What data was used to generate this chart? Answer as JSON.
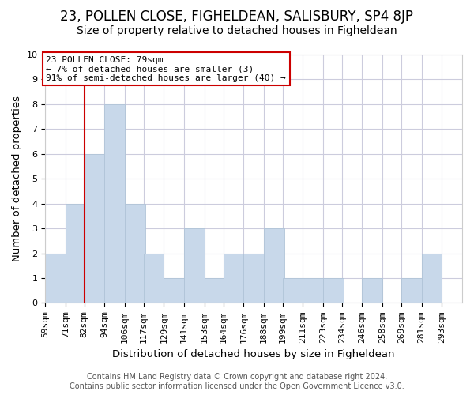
{
  "title": "23, POLLEN CLOSE, FIGHELDEAN, SALISBURY, SP4 8JP",
  "subtitle": "Size of property relative to detached houses in Figheldean",
  "xlabel": "Distribution of detached houses by size in Figheldean",
  "ylabel": "Number of detached properties",
  "bins": [
    59,
    71,
    82,
    94,
    106,
    117,
    129,
    141,
    153,
    164,
    176,
    188,
    199,
    211,
    223,
    234,
    246,
    258,
    269,
    281,
    293
  ],
  "bin_labels": [
    "59sqm",
    "71sqm",
    "82sqm",
    "94sqm",
    "106sqm",
    "117sqm",
    "129sqm",
    "141sqm",
    "153sqm",
    "164sqm",
    "176sqm",
    "188sqm",
    "199sqm",
    "211sqm",
    "223sqm",
    "234sqm",
    "246sqm",
    "258sqm",
    "269sqm",
    "281sqm",
    "293sqm"
  ],
  "counts": [
    2,
    4,
    6,
    8,
    4,
    2,
    1,
    3,
    1,
    2,
    2,
    3,
    1,
    1,
    1,
    0,
    1,
    0,
    1,
    2,
    0
  ],
  "bar_color": "#c8d8ea",
  "bar_edge_color": "#b0c4d8",
  "vline_x": 82,
  "vline_color": "#cc0000",
  "annotation_title": "23 POLLEN CLOSE: 79sqm",
  "annotation_line1": "← 7% of detached houses are smaller (3)",
  "annotation_line2": "91% of semi-detached houses are larger (40) →",
  "annotation_box_color": "#ffffff",
  "annotation_box_edge": "#cc0000",
  "ylim": [
    0,
    10
  ],
  "yticks": [
    0,
    1,
    2,
    3,
    4,
    5,
    6,
    7,
    8,
    9,
    10
  ],
  "grid_color": "#ccccdd",
  "footer1": "Contains HM Land Registry data © Crown copyright and database right 2024.",
  "footer2": "Contains public sector information licensed under the Open Government Licence v3.0.",
  "title_fontsize": 12,
  "subtitle_fontsize": 10,
  "axis_label_fontsize": 9.5,
  "tick_fontsize": 8,
  "footer_fontsize": 7
}
